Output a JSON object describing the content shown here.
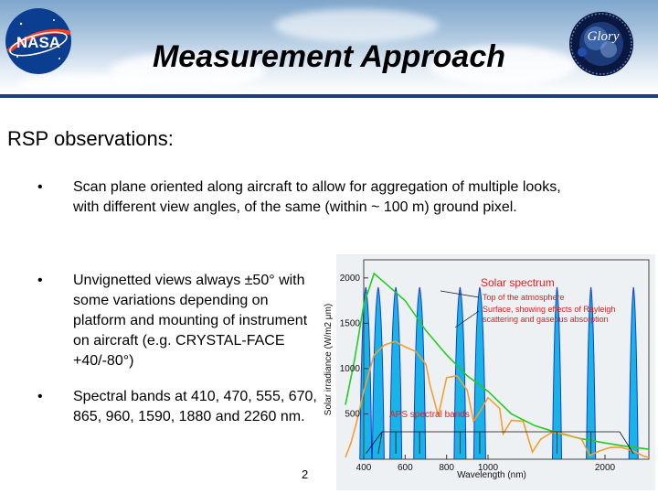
{
  "header": {
    "title": "Measurement Approach"
  },
  "logos": {
    "nasa_text": "NASA",
    "glory_text": "Glory"
  },
  "subtitle": "RSP observations:",
  "bullets": [
    {
      "marker": "•",
      "text": "Scan plane oriented along aircraft to allow for aggregation of multiple looks, with different view angles, of the same (within ~ 100 m) ground pixel."
    },
    {
      "marker": "•",
      "text": "Unvignetted views always ±50° with some variations depending on platform and mounting of instrument on aircraft (e.g. CRYSTAL-FACE +40/-80°)"
    },
    {
      "marker": "•",
      "text": "Spectral bands at 410, 470, 555, 670, 865, 960, 1590, 1880 and 2260 nm."
    }
  ],
  "page_number": "2",
  "chart_data": {
    "type": "line",
    "xlabel": "Wavelength (nm)",
    "ylabel": "Solar irradiance (W/m2 μm)",
    "xlim": [
      300,
      2400
    ],
    "ylim": [
      0,
      2200
    ],
    "x_ticks": [
      400,
      600,
      800,
      1000,
      2000
    ],
    "y_ticks": [
      500,
      1000,
      1500,
      2000
    ],
    "legend": {
      "title": "Solar spectrum",
      "top_label": "Top of the atmosphere",
      "surface_label": "Surface, showing effects of Rayleigh scattering and gaseous absorption"
    },
    "bands_label": "APS spectral bands",
    "aps_bands_nm": [
      410,
      470,
      555,
      670,
      865,
      960,
      1590,
      1880,
      2260
    ],
    "series": [
      {
        "color": "#22cc22",
        "x": [
          300,
          350,
          400,
          450,
          500,
          550,
          600,
          700,
          800,
          900,
          1000,
          1200,
          1400,
          1600,
          1800,
          2000,
          2200,
          2400
        ],
        "y": [
          600,
          1100,
          1700,
          2050,
          1950,
          1850,
          1750,
          1420,
          1150,
          920,
          750,
          500,
          370,
          290,
          225,
          180,
          140,
          110
        ]
      },
      {
        "color": "#f0a030",
        "x": [
          300,
          330,
          360,
          400,
          450,
          500,
          550,
          600,
          650,
          700,
          720,
          760,
          800,
          850,
          900,
          930,
          960,
          1000,
          1100,
          1130,
          1200,
          1300,
          1380,
          1450,
          1550,
          1650,
          1800,
          1870,
          1950,
          2050,
          2150,
          2250,
          2350,
          2400
        ],
        "y": [
          20,
          180,
          400,
          750,
          1150,
          1260,
          1300,
          1240,
          1190,
          1050,
          820,
          480,
          900,
          920,
          760,
          420,
          520,
          680,
          560,
          280,
          430,
          420,
          80,
          220,
          300,
          280,
          220,
          40,
          90,
          130,
          130,
          95,
          35,
          20
        ]
      }
    ]
  },
  "colors": {
    "header_rule": "#1d3f7a",
    "band_fill": "#18b4e8",
    "band_outline": "#1a3cd0",
    "annotation_red": "#e02020",
    "chart_bg": "#eef1f3"
  }
}
